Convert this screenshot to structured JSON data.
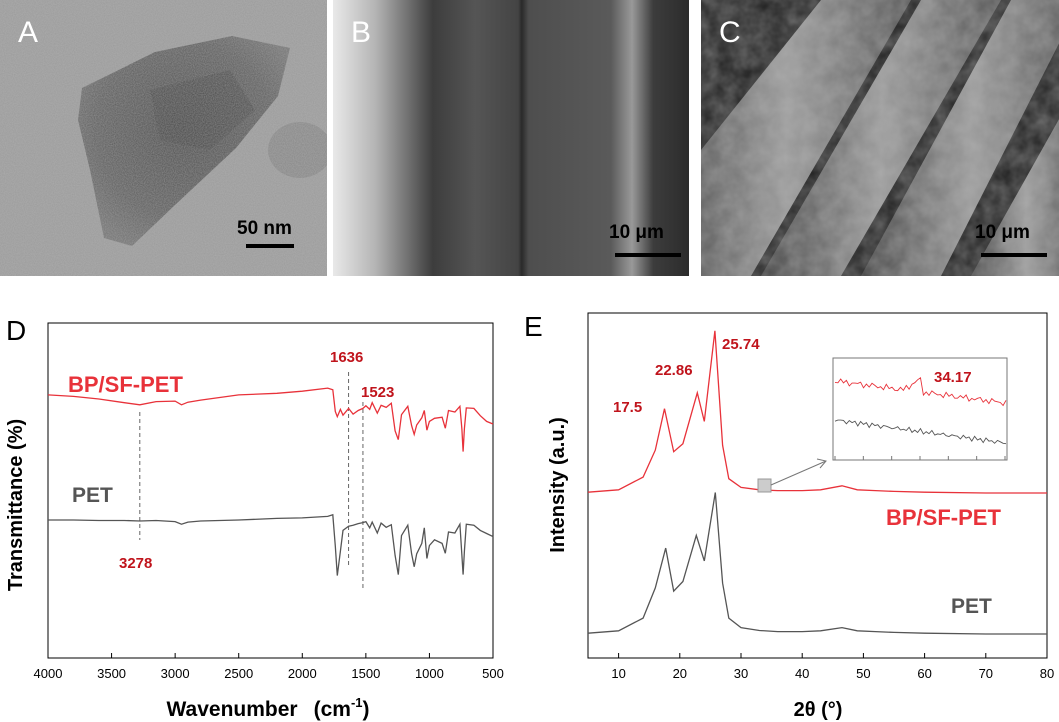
{
  "micrographs": [
    {
      "letter": "A",
      "scalebar": "50 nm"
    },
    {
      "letter": "B",
      "scalebar": "10 μm"
    },
    {
      "letter": "C",
      "scalebar": "10 μm"
    }
  ],
  "colors": {
    "bp_sf_pet": "#e8323a",
    "pet": "#555555",
    "annotation": "#c0141c"
  },
  "chart_data": [
    {
      "panel": "D",
      "type": "line",
      "xlabel": "Wavenumber",
      "xunit": "(cm",
      "xunit_sup": "-1",
      "xunit_close": ")",
      "ylabel": "Transmittance (%)",
      "xlim": [
        4000,
        500
      ],
      "x_ticks": [
        "4000",
        "3500",
        "3000",
        "2500",
        "2000",
        "1500",
        "1000",
        "500"
      ],
      "series": [
        {
          "name": "BP/SF-PET",
          "color": "#e8323a",
          "x": [
            4000,
            3800,
            3600,
            3400,
            3278,
            3150,
            3000,
            2950,
            2900,
            2800,
            2500,
            2200,
            2000,
            1800,
            1760,
            1740,
            1725,
            1700,
            1680,
            1636,
            1600,
            1560,
            1523,
            1500,
            1470,
            1450,
            1410,
            1380,
            1340,
            1300,
            1270,
            1245,
            1220,
            1170,
            1140,
            1120,
            1100,
            1060,
            1040,
            1020,
            1000,
            960,
            900,
            875,
            850,
            800,
            760,
            745,
            735,
            725,
            710,
            650,
            600,
            550,
            500
          ],
          "y": [
            0.6,
            0.3,
            -0.2,
            -0.9,
            -1.3,
            -0.7,
            -0.6,
            -1.3,
            -0.8,
            -0.4,
            0.6,
            0.9,
            1.3,
            1.9,
            1.6,
            -2.6,
            -3.6,
            -2.2,
            -3.3,
            -2.0,
            -3.1,
            -2.4,
            -2.0,
            -1.5,
            -2.2,
            -0.9,
            -2.9,
            -1.4,
            -1.8,
            -1.0,
            -6.3,
            -8.0,
            -3.2,
            -1.6,
            -5.3,
            -7.0,
            -5.2,
            -3.8,
            -2.4,
            -6.2,
            -4.5,
            -3.9,
            -3.7,
            -5.8,
            -2.4,
            -2.7,
            -1.6,
            -6.0,
            -10.3,
            -5.9,
            -1.9,
            -2.0,
            -3.4,
            -4.5,
            -5.0
          ]
        },
        {
          "name": "PET",
          "color": "#555555",
          "x": [
            4000,
            3800,
            3600,
            3400,
            3278,
            3150,
            3000,
            2950,
            2900,
            2800,
            2500,
            2200,
            2000,
            1800,
            1760,
            1740,
            1725,
            1700,
            1680,
            1636,
            1600,
            1560,
            1523,
            1500,
            1470,
            1450,
            1410,
            1380,
            1340,
            1300,
            1270,
            1245,
            1220,
            1170,
            1140,
            1120,
            1100,
            1060,
            1040,
            1020,
            1000,
            960,
            900,
            875,
            850,
            800,
            760,
            745,
            735,
            725,
            710,
            650,
            600,
            550,
            500
          ],
          "y": [
            0.0,
            0.0,
            -0.1,
            -0.1,
            -0.2,
            -0.1,
            -0.3,
            -0.8,
            -0.4,
            -0.2,
            0.0,
            0.3,
            0.4,
            0.7,
            1.0,
            -5.0,
            -10.7,
            -6.0,
            -2.0,
            -1.2,
            -1.0,
            -0.7,
            -0.5,
            -0.3,
            -1.5,
            -0.4,
            -2.5,
            -0.6,
            -1.4,
            -0.9,
            -6.8,
            -10.5,
            -3.0,
            -1.0,
            -6.5,
            -9.0,
            -6.5,
            -4.5,
            -1.5,
            -7.4,
            -4.9,
            -3.8,
            -4.5,
            -6.4,
            -2.3,
            -2.5,
            -0.8,
            -6.8,
            -10.5,
            -6.0,
            -0.8,
            -1.0,
            -2.0,
            -2.6,
            -3.2
          ]
        }
      ],
      "series_labels": [
        "BP/SF-PET",
        "PET"
      ],
      "annotations": [
        {
          "label": "1636",
          "x": 1636
        },
        {
          "label": "1523",
          "x": 1523
        },
        {
          "label": "3278",
          "x": 3278
        }
      ]
    },
    {
      "panel": "E",
      "type": "line",
      "xlabel": "2θ (°)",
      "ylabel": "Intensity (a.u.)",
      "xlim": [
        5,
        80
      ],
      "x_ticks": [
        "10",
        "20",
        "30",
        "40",
        "50",
        "60",
        "70",
        "80"
      ],
      "series": [
        {
          "name": "BP/SF-PET",
          "color": "#e8323a",
          "x": [
            5,
            10,
            14,
            16,
            17.5,
            19,
            20.5,
            22.86,
            24,
            25.74,
            27,
            28,
            30,
            33,
            36,
            40,
            43,
            46.5,
            49,
            52,
            55,
            60,
            70,
            80
          ],
          "y": [
            0.05,
            0.2,
            1.0,
            2.7,
            5.3,
            2.6,
            3.1,
            6.3,
            4.5,
            10.2,
            3.0,
            0.9,
            0.35,
            0.2,
            0.15,
            0.15,
            0.2,
            0.45,
            0.2,
            0.15,
            0.1,
            0.05,
            0.0,
            0.0
          ]
        },
        {
          "name": "PET",
          "color": "#555555",
          "x": [
            5,
            10,
            14,
            16,
            17.7,
            19,
            20.5,
            22.7,
            24,
            25.8,
            27,
            28,
            30,
            33,
            36,
            40,
            43,
            46.5,
            49,
            52,
            55,
            60,
            70,
            80
          ],
          "y": [
            0.05,
            0.2,
            1.0,
            2.9,
            5.4,
            2.7,
            3.3,
            6.2,
            4.6,
            8.9,
            3.2,
            1.0,
            0.4,
            0.22,
            0.15,
            0.15,
            0.2,
            0.4,
            0.2,
            0.15,
            0.1,
            0.05,
            0.0,
            0.0
          ]
        }
      ],
      "series_labels": [
        "BP/SF-PET",
        "PET"
      ],
      "peak_labels": [
        {
          "label": "17.5",
          "x": 17.5
        },
        {
          "label": "22.86",
          "x": 22.86
        },
        {
          "label": "25.74",
          "x": 25.74
        }
      ],
      "inset": {
        "peak_label": "34.17",
        "x_range": [
          33,
          36
        ],
        "tick_count": 7
      }
    }
  ]
}
